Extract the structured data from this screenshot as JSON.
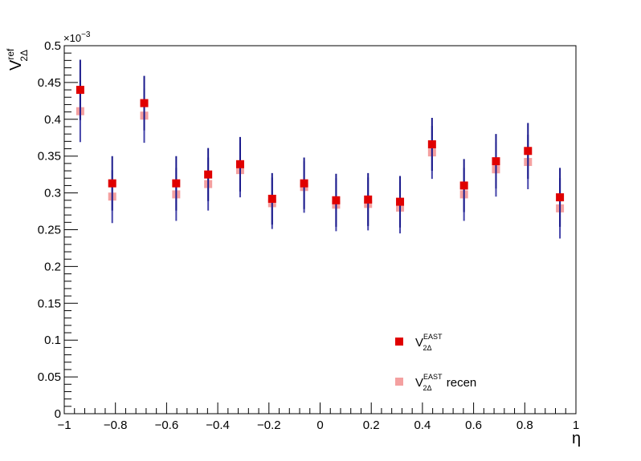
{
  "chart_data": {
    "type": "scatter",
    "xlabel": "η",
    "ylabel": {
      "base": "V",
      "sup": "ref",
      "sub": "2Δ"
    },
    "y_multiplier": "×10",
    "y_multiplier_exp": "−3",
    "xlim": [
      -1,
      1
    ],
    "ylim": [
      0,
      0.5
    ],
    "x_ticks": [
      -1,
      -0.8,
      -0.6,
      -0.4,
      -0.2,
      0,
      0.2,
      0.4,
      0.6,
      0.8,
      1
    ],
    "x_tick_labels": [
      "−1",
      "−0.8",
      "−0.6",
      "−0.4",
      "−0.2",
      "0",
      "0.2",
      "0.4",
      "0.6",
      "0.8",
      "1"
    ],
    "y_ticks": [
      0,
      0.05,
      0.1,
      0.15,
      0.2,
      0.25,
      0.3,
      0.35,
      0.4,
      0.45,
      0.5
    ],
    "y_tick_labels": [
      "0",
      "0.05",
      "0.1",
      "0.15",
      "0.2",
      "0.25",
      "0.3",
      "0.35",
      "0.4",
      "0.45",
      "0.5"
    ],
    "grid": false,
    "legend_position": "bottom-right",
    "series": [
      {
        "name": "V_{2Δ}^{EAST}",
        "legend": {
          "base": "V",
          "sup": "EAST",
          "sub": "2Δ",
          "suffix": ""
        },
        "color": "#e00000",
        "error_color": "#1a1a8c",
        "x": [
          -0.9375,
          -0.8125,
          -0.6875,
          -0.5625,
          -0.4375,
          -0.3125,
          -0.1875,
          -0.0625,
          0.0625,
          0.1875,
          0.3125,
          0.4375,
          0.5625,
          0.6875,
          0.8125,
          0.9375
        ],
        "y": [
          0.44,
          0.313,
          0.422,
          0.313,
          0.325,
          0.339,
          0.292,
          0.313,
          0.29,
          0.291,
          0.288,
          0.366,
          0.31,
          0.343,
          0.357,
          0.294
        ],
        "err": [
          0.041,
          0.037,
          0.037,
          0.037,
          0.036,
          0.037,
          0.035,
          0.035,
          0.036,
          0.036,
          0.035,
          0.036,
          0.036,
          0.037,
          0.038,
          0.04
        ]
      },
      {
        "name": "V_{2Δ}^{EAST} recen",
        "legend": {
          "base": "V",
          "sup": "EAST",
          "sub": "2Δ",
          "suffix": " recen"
        },
        "color": "#f4a0a0",
        "error_color": "#4444aa",
        "x": [
          -0.9375,
          -0.8125,
          -0.6875,
          -0.5625,
          -0.4375,
          -0.3125,
          -0.1875,
          -0.0625,
          0.0625,
          0.1875,
          0.3125,
          0.4375,
          0.5625,
          0.6875,
          0.8125,
          0.9375
        ],
        "y": [
          0.411,
          0.295,
          0.405,
          0.298,
          0.312,
          0.331,
          0.286,
          0.308,
          0.284,
          0.285,
          0.28,
          0.355,
          0.298,
          0.332,
          0.342,
          0.279
        ],
        "err": [
          0.042,
          0.036,
          0.037,
          0.036,
          0.036,
          0.037,
          0.035,
          0.035,
          0.036,
          0.036,
          0.035,
          0.036,
          0.036,
          0.037,
          0.037,
          0.041
        ]
      }
    ]
  }
}
